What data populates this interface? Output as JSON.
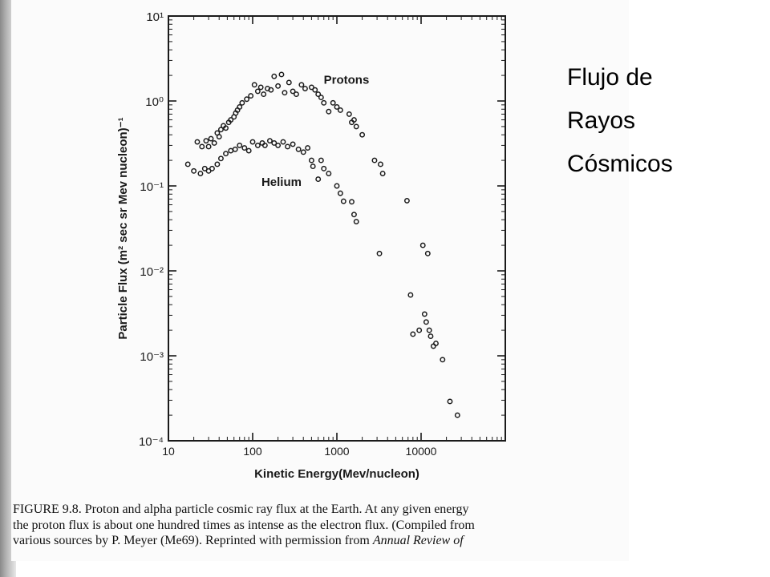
{
  "slide": {
    "side_title_lines": [
      "Flujo de",
      "Rayos",
      "Cósmicos"
    ]
  },
  "figure": {
    "caption_lines": [
      "FIGURE 9.8. Proton and alpha particle cosmic ray flux at the Earth. At any given energy",
      "the proton flux is about one hundred times as intense as the electron flux. (Compiled from",
      "various sources by P. Meyer (Me69). Reprinted with permission from "
    ],
    "caption_emphasis": "Annual Review of"
  },
  "chart_data": {
    "type": "scatter",
    "title": "",
    "xlabel": "Kinetic Energy(Mev/nucleon)",
    "ylabel": "Particle Flux (m² sec sr Mev nucleon)⁻¹",
    "xscale": "log",
    "yscale": "log",
    "xlim": [
      10,
      100000
    ],
    "ylim": [
      0.0001,
      10
    ],
    "x_tick_labels": [
      "10",
      "100",
      "1000",
      "10000"
    ],
    "y_tick_labels": [
      "10¹",
      "10⁰",
      "10⁻¹",
      "10⁻²",
      "10⁻³",
      "10⁻⁴"
    ],
    "grid": false,
    "legend": "none",
    "series": [
      {
        "name": "Protons",
        "points": [
          [
            22,
            0.33
          ],
          [
            25,
            0.29
          ],
          [
            28,
            0.34
          ],
          [
            30,
            0.29
          ],
          [
            32,
            0.36
          ],
          [
            35,
            0.32
          ],
          [
            38,
            0.42
          ],
          [
            40,
            0.38
          ],
          [
            42,
            0.46
          ],
          [
            45,
            0.51
          ],
          [
            48,
            0.48
          ],
          [
            52,
            0.56
          ],
          [
            55,
            0.6
          ],
          [
            60,
            0.65
          ],
          [
            63,
            0.72
          ],
          [
            66,
            0.78
          ],
          [
            70,
            0.85
          ],
          [
            75,
            0.95
          ],
          [
            85,
            1.05
          ],
          [
            95,
            1.15
          ],
          [
            105,
            1.55
          ],
          [
            115,
            1.3
          ],
          [
            125,
            1.45
          ],
          [
            135,
            1.2
          ],
          [
            150,
            1.4
          ],
          [
            165,
            1.35
          ],
          [
            180,
            1.95
          ],
          [
            200,
            1.5
          ],
          [
            220,
            2.05
          ],
          [
            240,
            1.25
          ],
          [
            270,
            1.65
          ],
          [
            300,
            1.3
          ],
          [
            330,
            1.2
          ],
          [
            380,
            1.55
          ],
          [
            420,
            1.4
          ],
          [
            500,
            1.45
          ],
          [
            550,
            1.35
          ],
          [
            600,
            1.2
          ],
          [
            650,
            1.1
          ],
          [
            700,
            0.95
          ],
          [
            800,
            0.75
          ],
          [
            900,
            0.95
          ],
          [
            1000,
            0.85
          ],
          [
            1100,
            0.78
          ],
          [
            1400,
            0.7
          ],
          [
            1500,
            0.56
          ],
          [
            1600,
            0.6
          ],
          [
            1700,
            0.5
          ],
          [
            2000,
            0.4
          ],
          [
            2800,
            0.2
          ],
          [
            3300,
            0.18
          ],
          [
            3500,
            0.14
          ],
          [
            3200,
            0.016
          ],
          [
            6800,
            0.067
          ],
          [
            10500,
            0.02
          ],
          [
            12000,
            0.016
          ]
        ]
      },
      {
        "name": "Helium",
        "points": [
          [
            17,
            0.18
          ],
          [
            20,
            0.15
          ],
          [
            24,
            0.14
          ],
          [
            27,
            0.16
          ],
          [
            30,
            0.15
          ],
          [
            33,
            0.16
          ],
          [
            38,
            0.18
          ],
          [
            42,
            0.21
          ],
          [
            48,
            0.24
          ],
          [
            55,
            0.26
          ],
          [
            62,
            0.27
          ],
          [
            70,
            0.3
          ],
          [
            80,
            0.28
          ],
          [
            90,
            0.26
          ],
          [
            100,
            0.33
          ],
          [
            115,
            0.3
          ],
          [
            130,
            0.32
          ],
          [
            140,
            0.3
          ],
          [
            160,
            0.34
          ],
          [
            180,
            0.32
          ],
          [
            200,
            0.3
          ],
          [
            230,
            0.33
          ],
          [
            260,
            0.29
          ],
          [
            300,
            0.31
          ],
          [
            350,
            0.27
          ],
          [
            400,
            0.25
          ],
          [
            450,
            0.28
          ],
          [
            500,
            0.2
          ],
          [
            520,
            0.17
          ],
          [
            600,
            0.12
          ],
          [
            650,
            0.2
          ],
          [
            700,
            0.16
          ],
          [
            800,
            0.14
          ],
          [
            1000,
            0.1
          ],
          [
            1100,
            0.082
          ],
          [
            1200,
            0.066
          ],
          [
            1500,
            0.065
          ],
          [
            1600,
            0.046
          ],
          [
            1700,
            0.038
          ]
        ]
      },
      {
        "name": "",
        "points": [
          [
            7500,
            0.0052
          ],
          [
            8000,
            0.0018
          ],
          [
            9500,
            0.002
          ],
          [
            11000,
            0.0031
          ],
          [
            11500,
            0.0025
          ],
          [
            12500,
            0.002
          ],
          [
            13000,
            0.0017
          ],
          [
            14000,
            0.0013
          ],
          [
            15000,
            0.0014
          ],
          [
            18000,
            0.0009
          ],
          [
            22000,
            0.00029
          ],
          [
            27000,
            0.0002
          ]
        ]
      }
    ],
    "annotations": [
      {
        "text": "Protons",
        "x": 1300,
        "y": 1.6
      },
      {
        "text": "Helium",
        "x": 220,
        "y": 0.1
      }
    ]
  }
}
